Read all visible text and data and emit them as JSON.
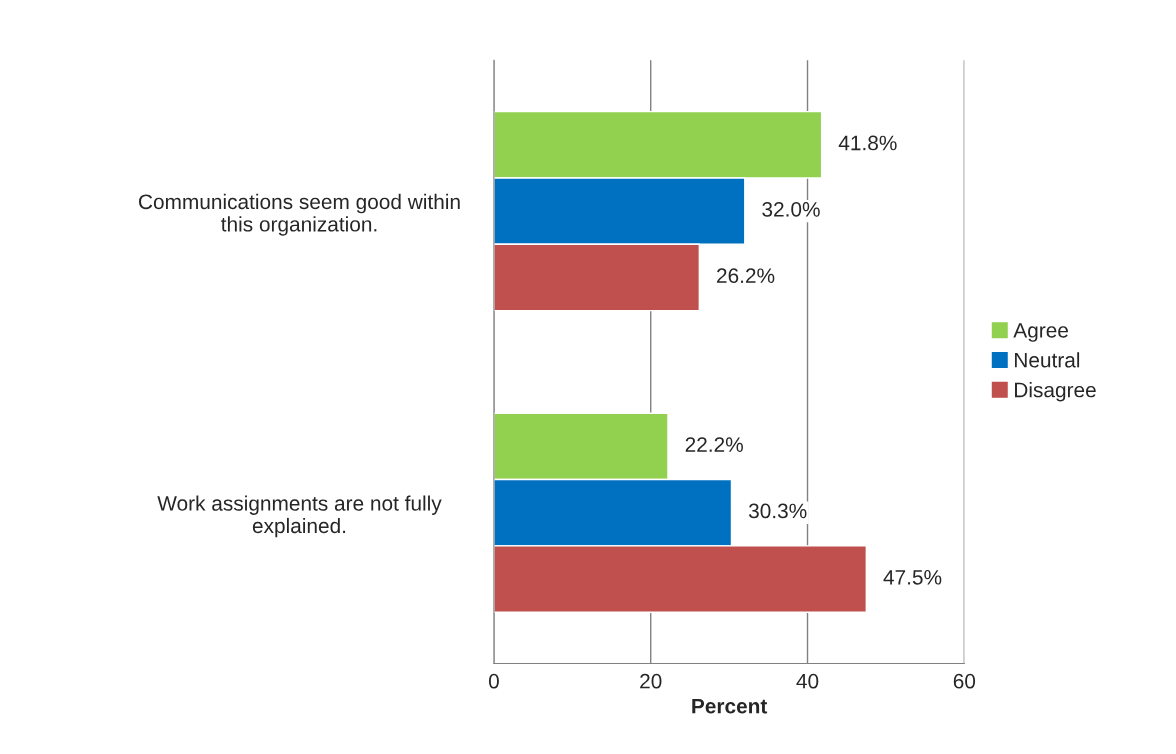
{
  "chart_data": {
    "type": "bar",
    "orientation": "horizontal",
    "xlabel": "Percent",
    "categories": [
      "Communications seem good within\nthis organization.",
      "Work assignments are not fully\nexplained."
    ],
    "series": [
      {
        "name": "Agree",
        "color": "#92d050",
        "values": [
          41.8,
          22.2
        ],
        "value_labels": [
          "41.8%",
          "22.2%"
        ]
      },
      {
        "name": "Neutral",
        "color": "#0070c0",
        "values": [
          32.0,
          30.3
        ],
        "value_labels": [
          "32.0%",
          "30.3%"
        ]
      },
      {
        "name": "Disagree",
        "color": "#c0504d",
        "values": [
          26.2,
          47.5
        ],
        "value_labels": [
          "26.2%",
          "47.5%"
        ]
      }
    ],
    "xlim": [
      0,
      60
    ],
    "xticks": [
      0,
      20,
      40,
      60
    ],
    "grid": "x",
    "legend": "right"
  }
}
